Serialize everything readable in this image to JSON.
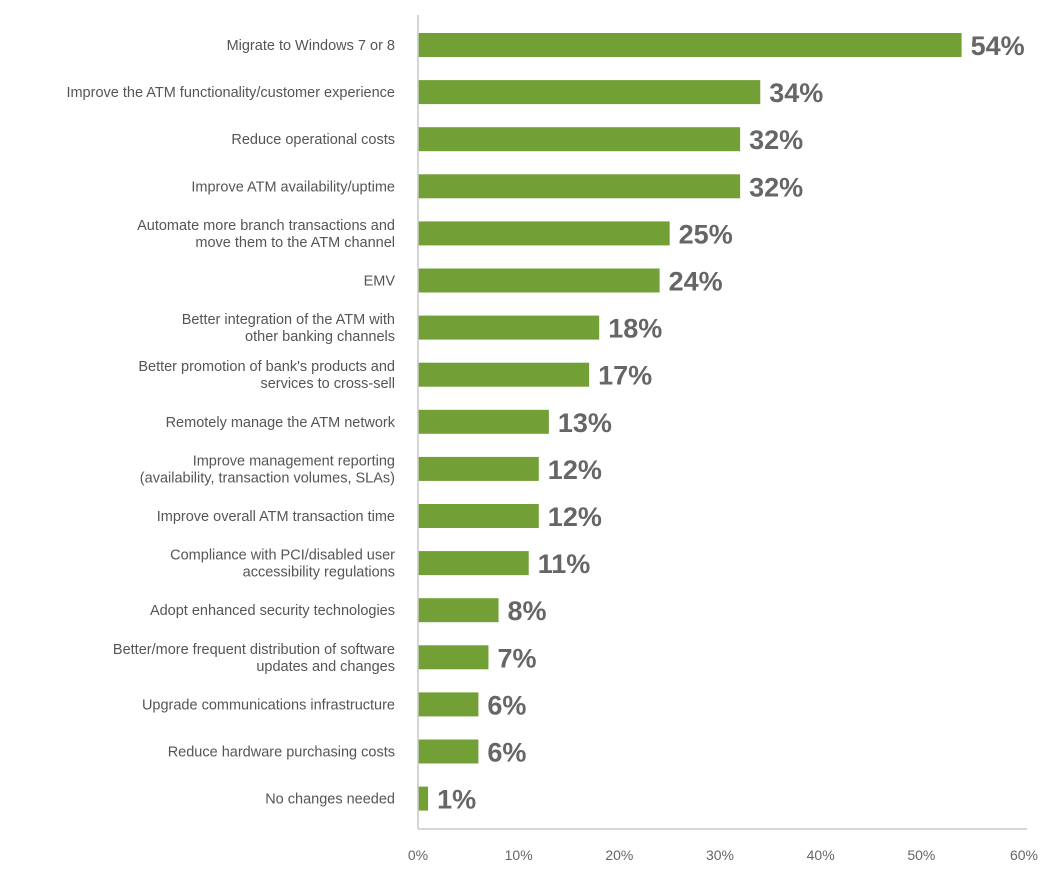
{
  "chart_data": {
    "type": "bar",
    "orientation": "horizontal",
    "categories": [
      [
        "Migrate to Windows 7 or 8"
      ],
      [
        "Improve the ATM functionality/customer experience"
      ],
      [
        "Reduce operational costs"
      ],
      [
        "Improve ATM availability/uptime"
      ],
      [
        "Automate more branch transactions and",
        "move them to the ATM channel"
      ],
      [
        "EMV"
      ],
      [
        "Better integration of the ATM with",
        "other banking channels"
      ],
      [
        "Better promotion of bank's products and",
        "services to cross-sell"
      ],
      [
        "Remotely manage the ATM network"
      ],
      [
        "Improve management reporting",
        "(availability, transaction volumes, SLAs)"
      ],
      [
        "Improve overall ATM transaction time"
      ],
      [
        "Compliance with PCI/disabled user",
        "accessibility regulations"
      ],
      [
        "Adopt enhanced security technologies"
      ],
      [
        "Better/more frequent distribution of software",
        "updates and changes"
      ],
      [
        "Upgrade communications infrastructure"
      ],
      [
        "Reduce hardware purchasing costs"
      ],
      [
        "No changes needed"
      ]
    ],
    "values": [
      54,
      34,
      32,
      32,
      25,
      24,
      18,
      17,
      13,
      12,
      12,
      11,
      8,
      7,
      6,
      6,
      1
    ],
    "value_labels": [
      "54%",
      "34%",
      "32%",
      "32%",
      "25%",
      "24%",
      "18%",
      "17%",
      "13%",
      "12%",
      "12%",
      "11%",
      "8%",
      "7%",
      "6%",
      "6%",
      "1%"
    ],
    "xlim": [
      0,
      60
    ],
    "xticks": [
      0,
      10,
      20,
      30,
      40,
      50,
      60
    ],
    "xtick_labels": [
      "0%",
      "10%",
      "20%",
      "30%",
      "40%",
      "50%",
      "60%"
    ],
    "grid": false,
    "colors": {
      "bar": "#72a036",
      "value_text": "#666666",
      "label_text": "#555555",
      "axis": "#c8c8c8"
    }
  }
}
